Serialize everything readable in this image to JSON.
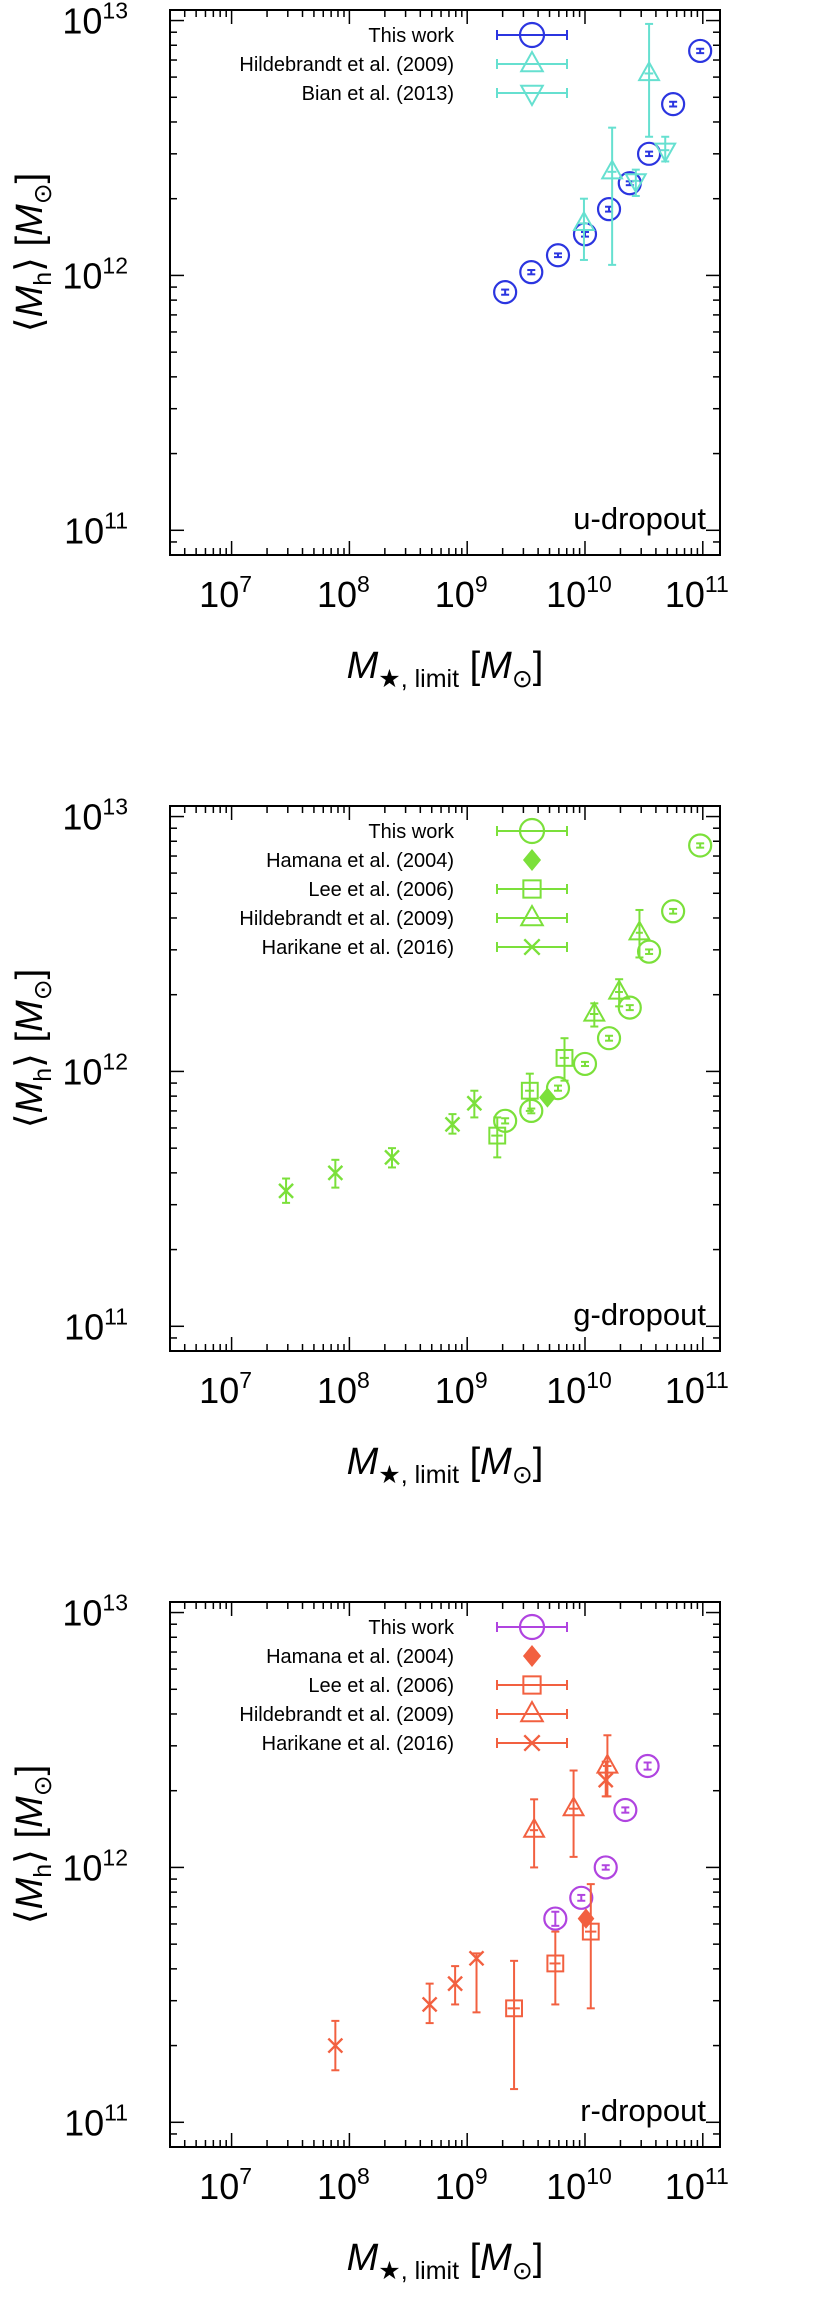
{
  "figure": {
    "xlabel": {
      "symbol": "M",
      "sub": "★, limit",
      "unit": "M",
      "unit_sub": "⊙"
    },
    "ylabel": {
      "symbol": "M",
      "sub": "h",
      "unit": "M",
      "unit_sub": "⊙"
    }
  },
  "chart_data": [
    {
      "type": "scatter",
      "panel_label": "u-dropout",
      "xscale": "log",
      "yscale": "log",
      "xlim": [
        3000000.0,
        140000000000.0
      ],
      "ylim": [
        80000000000.0,
        11000000000000.0
      ],
      "xticks": [
        {
          "base": "10",
          "exp": "7"
        },
        {
          "base": "10",
          "exp": "8"
        },
        {
          "base": "10",
          "exp": "9"
        },
        {
          "base": "10",
          "exp": "10"
        },
        {
          "base": "10",
          "exp": "11"
        }
      ],
      "yticks": [
        {
          "base": "10",
          "exp": "11"
        },
        {
          "base": "10",
          "exp": "12"
        },
        {
          "base": "10",
          "exp": "13"
        }
      ],
      "legend_position": "top-right",
      "series": [
        {
          "name": "This work",
          "marker": "circle",
          "color": "#2b35e0",
          "points": [
            {
              "x": 2100000000.0,
              "y": 860000000000.0,
              "ylo": 840000000000.0,
              "yhi": 880000000000.0
            },
            {
              "x": 3500000000.0,
              "y": 1030000000000.0,
              "ylo": 1010000000000.0,
              "yhi": 1050000000000.0
            },
            {
              "x": 5900000000.0,
              "y": 1200000000000.0,
              "ylo": 1180000000000.0,
              "yhi": 1220000000000.0
            },
            {
              "x": 10000000000.0,
              "y": 1450000000000.0,
              "ylo": 1420000000000.0,
              "yhi": 1480000000000.0
            },
            {
              "x": 16000000000.0,
              "y": 1820000000000.0,
              "ylo": 1780000000000.0,
              "yhi": 1860000000000.0
            },
            {
              "x": 24000000000.0,
              "y": 2300000000000.0,
              "ylo": 2260000000000.0,
              "yhi": 2340000000000.0
            },
            {
              "x": 35000000000.0,
              "y": 3000000000000.0,
              "ylo": 2940000000000.0,
              "yhi": 3060000000000.0
            },
            {
              "x": 56000000000.0,
              "y": 4700000000000.0,
              "ylo": 4600000000000.0,
              "yhi": 4800000000000.0
            },
            {
              "x": 95000000000.0,
              "y": 7600000000000.0,
              "ylo": 7450000000000.0,
              "yhi": 7750000000000.0
            }
          ]
        },
        {
          "name": "Hildebrandt et al. (2009)",
          "marker": "triangle-up",
          "color": "#66e0d0",
          "points": [
            {
              "x": 9800000000.0,
              "y": 1600000000000.0,
              "ylo": 1150000000000.0,
              "yhi": 2000000000000.0,
              "xlo": 9000000000.0,
              "xhi": 10600000000.0
            },
            {
              "x": 17000000000.0,
              "y": 2550000000000.0,
              "ylo": 1100000000000.0,
              "yhi": 3800000000000.0,
              "xlo": 15500000000.0,
              "xhi": 18500000000.0
            },
            {
              "x": 35000000000.0,
              "y": 6200000000000.0,
              "ylo": 3500000000000.0,
              "yhi": 9700000000000.0,
              "xlo": 32000000000.0,
              "xhi": 38000000000.0
            }
          ]
        },
        {
          "name": "Bian et al. (2013)",
          "marker": "triangle-down",
          "color": "#66e0d0",
          "points": [
            {
              "x": 27000000000.0,
              "y": 2350000000000.0,
              "ylo": 2050000000000.0,
              "yhi": 2600000000000.0,
              "xlo": 25000000000.0,
              "xhi": 29000000000.0
            },
            {
              "x": 48000000000.0,
              "y": 3100000000000.0,
              "ylo": 2800000000000.0,
              "yhi": 3500000000000.0,
              "xlo": 44000000000.0,
              "xhi": 52000000000.0
            }
          ]
        }
      ]
    },
    {
      "type": "scatter",
      "panel_label": "g-dropout",
      "xscale": "log",
      "yscale": "log",
      "xlim": [
        3000000.0,
        140000000000.0
      ],
      "ylim": [
        80000000000.0,
        11000000000000.0
      ],
      "xticks": [
        {
          "base": "10",
          "exp": "7"
        },
        {
          "base": "10",
          "exp": "8"
        },
        {
          "base": "10",
          "exp": "9"
        },
        {
          "base": "10",
          "exp": "10"
        },
        {
          "base": "10",
          "exp": "11"
        }
      ],
      "yticks": [
        {
          "base": "10",
          "exp": "11"
        },
        {
          "base": "10",
          "exp": "12"
        },
        {
          "base": "10",
          "exp": "13"
        }
      ],
      "legend_position": "top-right",
      "series": [
        {
          "name": "This work",
          "marker": "circle",
          "color": "#7be03a",
          "points": [
            {
              "x": 2100000000.0,
              "y": 640000000000.0,
              "ylo": 625000000000.0,
              "yhi": 655000000000.0
            },
            {
              "x": 3500000000.0,
              "y": 700000000000.0,
              "ylo": 685000000000.0,
              "yhi": 715000000000.0
            },
            {
              "x": 5900000000.0,
              "y": 860000000000.0,
              "ylo": 840000000000.0,
              "yhi": 880000000000.0
            },
            {
              "x": 10000000000.0,
              "y": 1070000000000.0,
              "ylo": 1050000000000.0,
              "yhi": 1090000000000.0
            },
            {
              "x": 16000000000.0,
              "y": 1350000000000.0,
              "ylo": 1320000000000.0,
              "yhi": 1380000000000.0
            },
            {
              "x": 24000000000.0,
              "y": 1780000000000.0,
              "ylo": 1740000000000.0,
              "yhi": 1820000000000.0
            },
            {
              "x": 35000000000.0,
              "y": 2950000000000.0,
              "ylo": 2890000000000.0,
              "yhi": 3010000000000.0
            },
            {
              "x": 56000000000.0,
              "y": 4250000000000.0,
              "ylo": 4160000000000.0,
              "yhi": 4340000000000.0
            },
            {
              "x": 95000000000.0,
              "y": 7700000000000.0,
              "ylo": 7550000000000.0,
              "yhi": 7850000000000.0
            }
          ]
        },
        {
          "name": "Hamana et al. (2004)",
          "marker": "diamond-filled",
          "color": "#7be03a",
          "points": [
            {
              "x": 4800000000.0,
              "y": 790000000000.0
            }
          ]
        },
        {
          "name": "Lee et al. (2006)",
          "marker": "square",
          "color": "#7be03a",
          "points": [
            {
              "x": 1800000000.0,
              "y": 560000000000.0,
              "ylo": 460000000000.0,
              "yhi": 660000000000.0,
              "xlo": 1600000000.0,
              "xhi": 2000000000.0
            },
            {
              "x": 3400000000.0,
              "y": 840000000000.0,
              "ylo": 700000000000.0,
              "yhi": 980000000000.0,
              "xlo": 3100000000.0,
              "xhi": 3700000000.0
            },
            {
              "x": 6700000000.0,
              "y": 1130000000000.0,
              "ylo": 920000000000.0,
              "yhi": 1350000000000.0,
              "xlo": 6100000000.0,
              "xhi": 7300000000.0
            }
          ]
        },
        {
          "name": "Hildebrandt et al. (2009)",
          "marker": "triangle-up",
          "color": "#7be03a",
          "points": [
            {
              "x": 12000000000.0,
              "y": 1680000000000.0,
              "ylo": 1500000000000.0,
              "yhi": 1850000000000.0,
              "xlo": 11000000000.0,
              "xhi": 13000000000.0
            },
            {
              "x": 19500000000.0,
              "y": 2050000000000.0,
              "ylo": 1800000000000.0,
              "yhi": 2300000000000.0,
              "xlo": 18000000000.0,
              "xhi": 21000000000.0
            },
            {
              "x": 29000000000.0,
              "y": 3500000000000.0,
              "ylo": 2800000000000.0,
              "yhi": 4300000000000.0,
              "xlo": 27000000000.0,
              "xhi": 31000000000.0
            }
          ]
        },
        {
          "name": "Harikane et al. (2016)",
          "marker": "cross",
          "color": "#7be03a",
          "points": [
            {
              "x": 29000000.0,
              "y": 340000000000.0,
              "ylo": 305000000000.0,
              "yhi": 380000000000.0
            },
            {
              "x": 76000000.0,
              "y": 400000000000.0,
              "ylo": 350000000000.0,
              "yhi": 450000000000.0
            },
            {
              "x": 230000000.0,
              "y": 460000000000.0,
              "ylo": 420000000000.0,
              "yhi": 500000000000.0
            },
            {
              "x": 750000000.0,
              "y": 620000000000.0,
              "ylo": 570000000000.0,
              "yhi": 680000000000.0
            },
            {
              "x": 1150000000.0,
              "y": 750000000000.0,
              "ylo": 660000000000.0,
              "yhi": 840000000000.0
            }
          ]
        }
      ]
    },
    {
      "type": "scatter",
      "panel_label": "r-dropout",
      "xscale": "log",
      "yscale": "log",
      "xlim": [
        3000000.0,
        140000000000.0
      ],
      "ylim": [
        80000000000.0,
        11000000000000.0
      ],
      "xticks": [
        {
          "base": "10",
          "exp": "7"
        },
        {
          "base": "10",
          "exp": "8"
        },
        {
          "base": "10",
          "exp": "9"
        },
        {
          "base": "10",
          "exp": "10"
        },
        {
          "base": "10",
          "exp": "11"
        }
      ],
      "yticks": [
        {
          "base": "10",
          "exp": "11"
        },
        {
          "base": "10",
          "exp": "12"
        },
        {
          "base": "10",
          "exp": "13"
        }
      ],
      "legend_position": "top-right",
      "series": [
        {
          "name": "This work",
          "marker": "circle",
          "color": "#b044e0",
          "points": [
            {
              "x": 5600000000.0,
              "y": 630000000000.0,
              "ylo": 590000000000.0,
              "yhi": 670000000000.0
            },
            {
              "x": 9300000000.0,
              "y": 760000000000.0,
              "ylo": 740000000000.0,
              "yhi": 780000000000.0
            },
            {
              "x": 15000000000.0,
              "y": 1000000000000.0,
              "ylo": 980000000000.0,
              "yhi": 1020000000000.0
            },
            {
              "x": 22000000000.0,
              "y": 1680000000000.0,
              "ylo": 1640000000000.0,
              "yhi": 1720000000000.0
            },
            {
              "x": 34000000000.0,
              "y": 2500000000000.0,
              "ylo": 2420000000000.0,
              "yhi": 2580000000000.0
            }
          ]
        },
        {
          "name": "Hamana et al. (2004)",
          "marker": "diamond-filled",
          "color": "#f26040",
          "points": [
            {
              "x": 10200000000.0,
              "y": 630000000000.0
            }
          ]
        },
        {
          "name": "Lee et al. (2006)",
          "marker": "square",
          "color": "#f26040",
          "points": [
            {
              "x": 2500000000.0,
              "y": 280000000000.0,
              "ylo": 135000000000.0,
              "yhi": 430000000000.0,
              "xlo": 2200000000.0,
              "xhi": 2800000000.0
            },
            {
              "x": 5600000000.0,
              "y": 420000000000.0,
              "ylo": 290000000000.0,
              "yhi": 560000000000.0,
              "xlo": 5000000000.0,
              "xhi": 6200000000.0
            },
            {
              "x": 11200000000.0,
              "y": 560000000000.0,
              "ylo": 280000000000.0,
              "yhi": 860000000000.0,
              "xlo": 10000000000.0,
              "xhi": 12500000000.0
            }
          ]
        },
        {
          "name": "Hildebrandt et al. (2009)",
          "marker": "triangle-up",
          "color": "#f26040",
          "points": [
            {
              "x": 3700000000.0,
              "y": 1400000000000.0,
              "ylo": 1000000000000.0,
              "yhi": 1850000000000.0,
              "xlo": 3400000000.0,
              "xhi": 4000000000.0
            },
            {
              "x": 8000000000.0,
              "y": 1700000000000.0,
              "ylo": 1100000000000.0,
              "yhi": 2400000000000.0,
              "xlo": 7300000000.0,
              "xhi": 8800000000.0
            },
            {
              "x": 15500000000.0,
              "y": 2500000000000.0,
              "ylo": 1900000000000.0,
              "yhi": 3300000000000.0,
              "xlo": 14200000000.0,
              "xhi": 16800000000.0
            }
          ]
        },
        {
          "name": "Harikane et al. (2016)",
          "marker": "cross",
          "color": "#f26040",
          "points": [
            {
              "x": 76000000.0,
              "y": 200000000000.0,
              "ylo": 160000000000.0,
              "yhi": 250000000000.0
            },
            {
              "x": 480000000.0,
              "y": 290000000000.0,
              "ylo": 245000000000.0,
              "yhi": 350000000000.0
            },
            {
              "x": 790000000.0,
              "y": 350000000000.0,
              "ylo": 290000000000.0,
              "yhi": 410000000000.0
            },
            {
              "x": 1200000000.0,
              "y": 440000000000.0,
              "ylo": 270000000000.0,
              "yhi": 460000000000.0
            },
            {
              "x": 15000000000.0,
              "y": 2200000000000.0,
              "ylo": 1900000000000.0,
              "yhi": 2600000000000.0
            }
          ]
        }
      ]
    }
  ]
}
